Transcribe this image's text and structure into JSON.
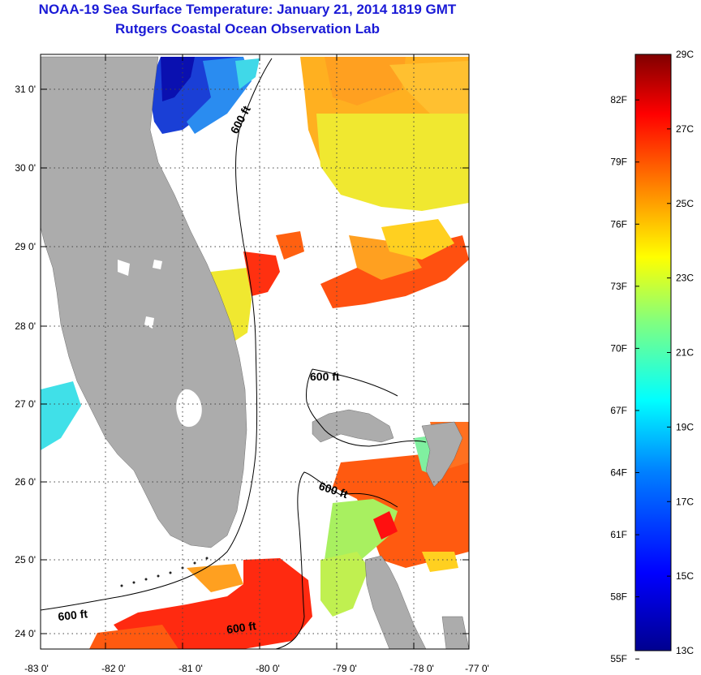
{
  "header": {
    "title": "NOAA-19 Sea Surface Temperature:  January 21, 2014 1819 GMT",
    "subtitle": "Rutgers Coastal Ocean Observation Lab"
  },
  "map": {
    "lon_ticks": [
      "-83 0'",
      "-82 0'",
      "-81 0'",
      "-80 0'",
      "-79 0'",
      "-78 0'",
      "-77 0'"
    ],
    "lat_ticks": [
      "31 0'",
      "30 0'",
      "29 0'",
      "28 0'",
      "27 0'",
      "26 0'",
      "25 0'",
      "24 0'"
    ],
    "contour_label": "600 ft",
    "land_color": "#acacac",
    "no_data_color": "#ffffff"
  },
  "colorbar": {
    "fahrenheit_labels": [
      "82F",
      "79F",
      "76F",
      "73F",
      "70F",
      "67F",
      "64F",
      "61F",
      "58F",
      "55F"
    ],
    "celsius_labels": [
      "29C",
      "27C",
      "25C",
      "23C",
      "21C",
      "19C",
      "17C",
      "15C",
      "13C"
    ],
    "range_c": [
      13,
      29
    ],
    "colors": [
      "#00008f",
      "#0000ff",
      "#0080ff",
      "#00ffff",
      "#80ff80",
      "#ffff00",
      "#ff8000",
      "#ff0000",
      "#800000"
    ]
  }
}
